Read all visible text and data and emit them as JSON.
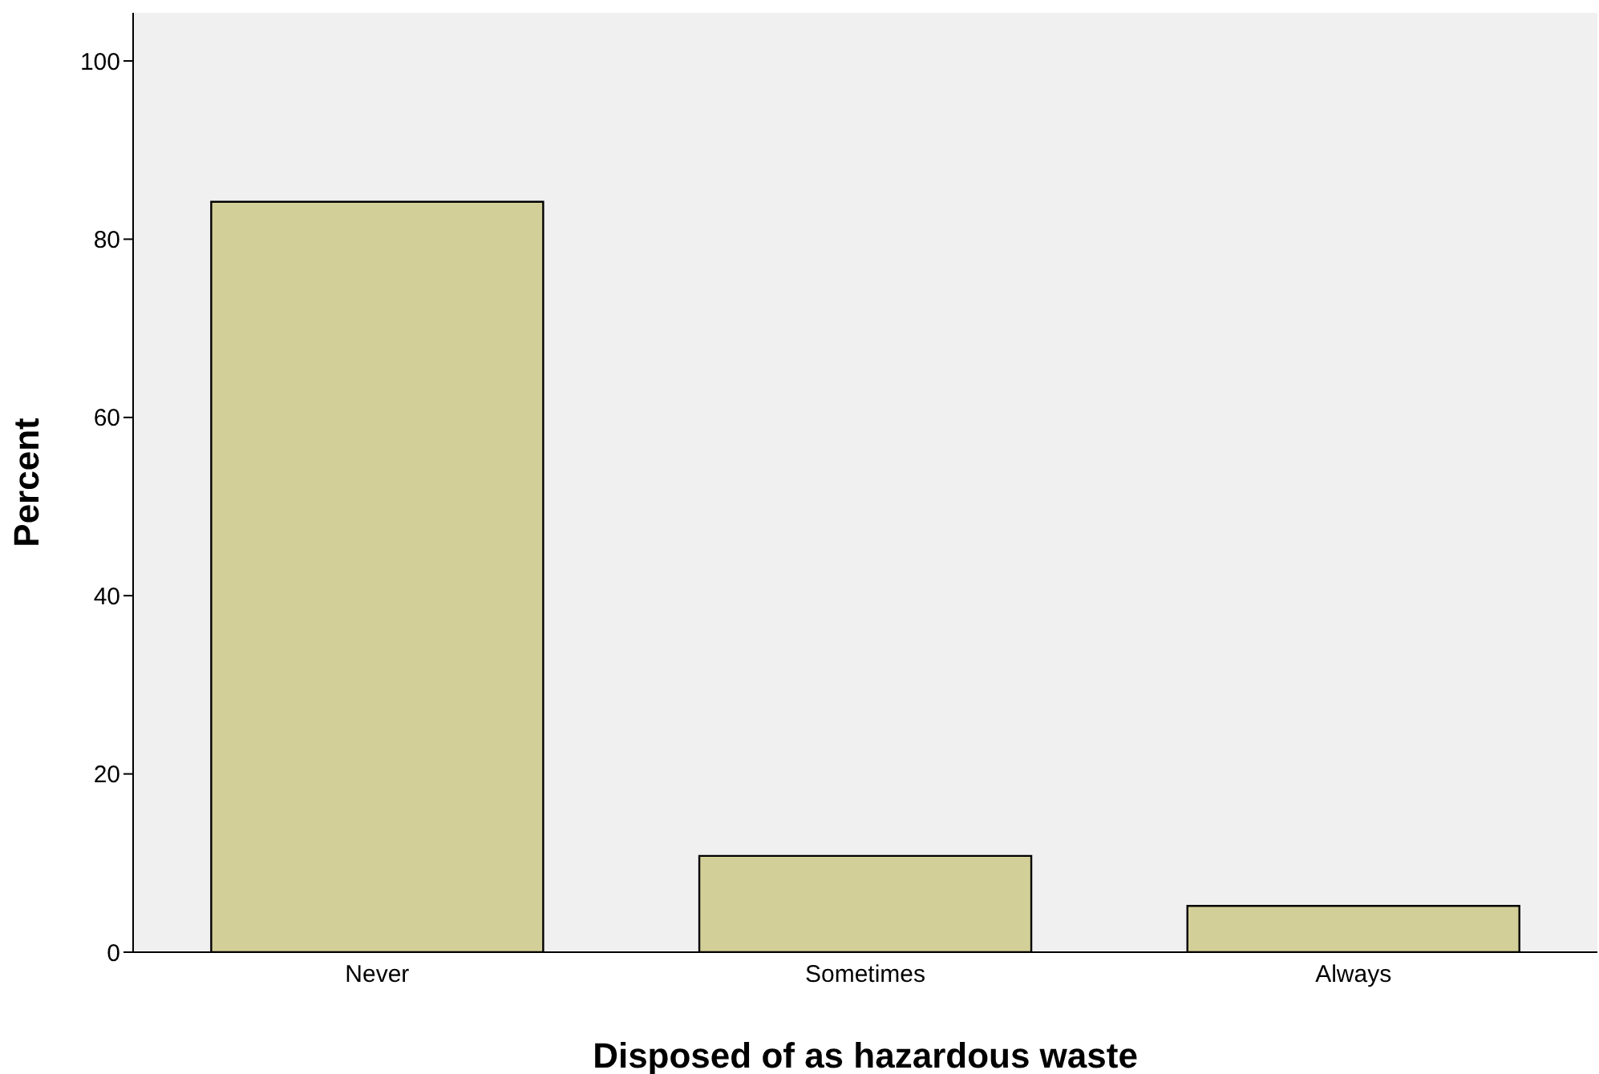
{
  "chart_data": {
    "type": "bar",
    "xlabel": "Disposed of as hazardous waste",
    "ylabel": "Percent",
    "categories": [
      "Never",
      "Sometimes",
      "Always"
    ],
    "values": [
      84.2,
      10.8,
      5.2
    ],
    "color": "#d3cf98",
    "ylim": [
      0,
      105.4
    ],
    "yticks": [
      0,
      20,
      40,
      60,
      80,
      100
    ]
  }
}
